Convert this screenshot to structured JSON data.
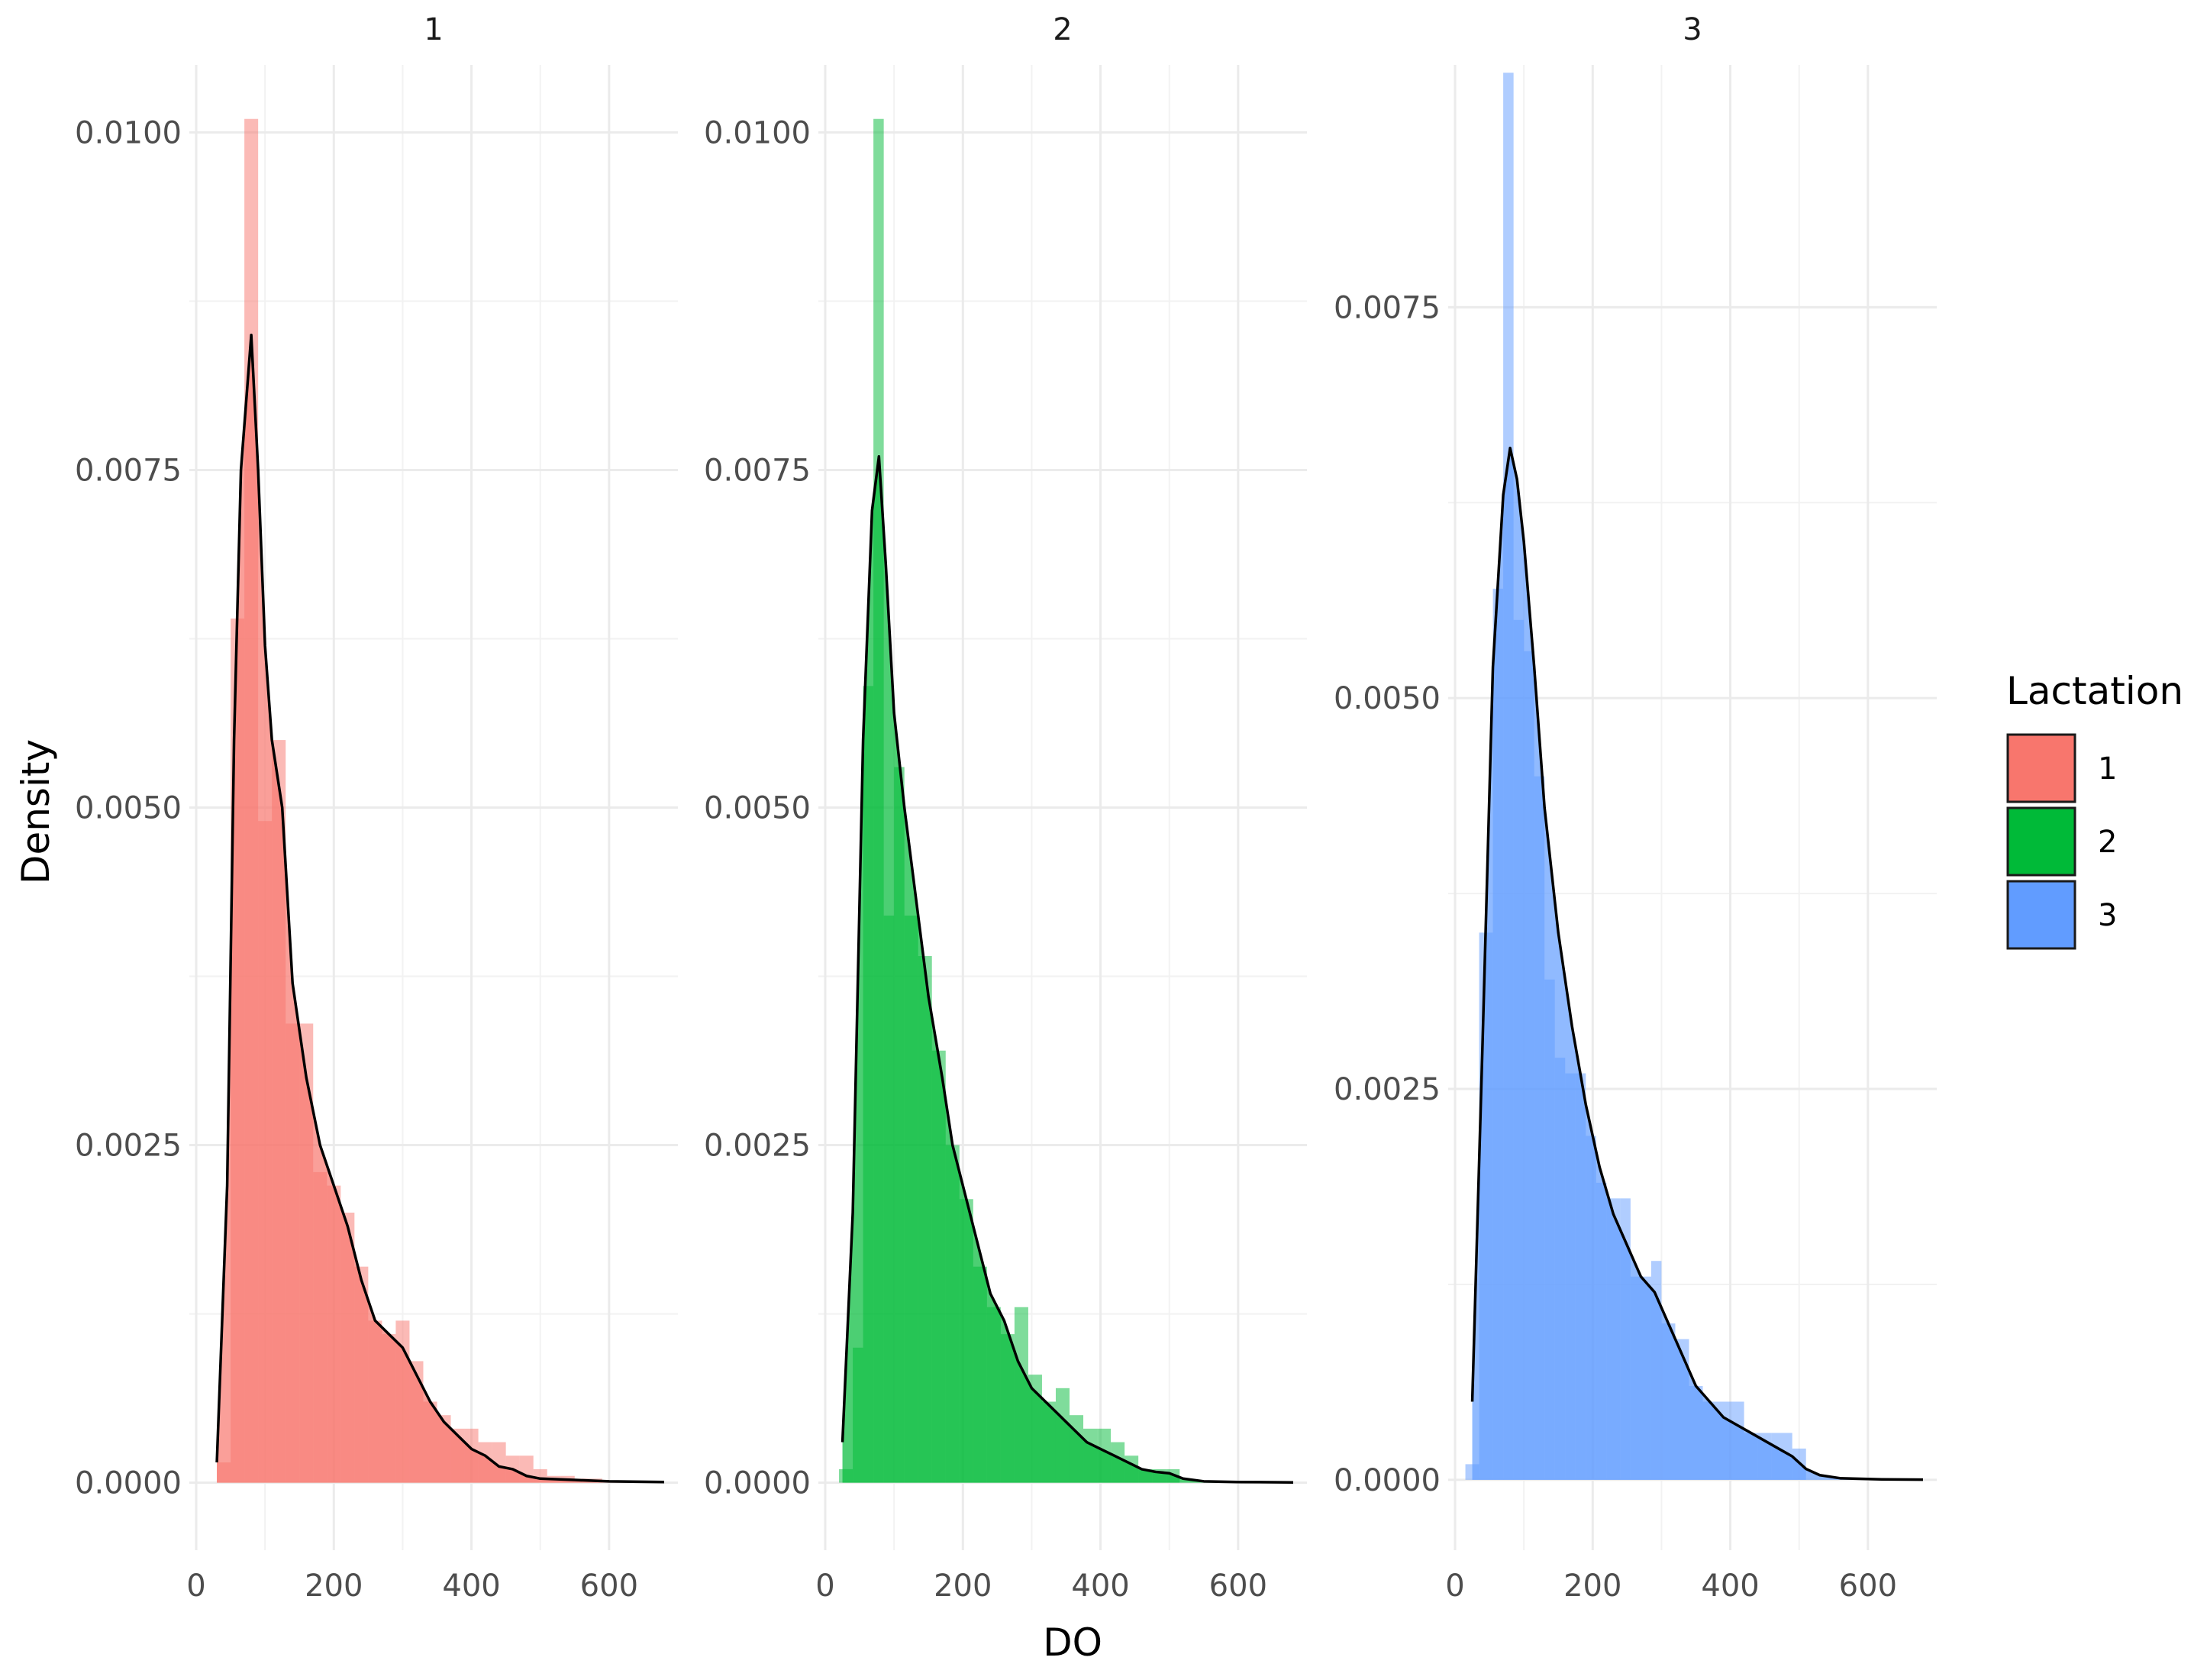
{
  "chart_data": {
    "type": "area",
    "description_kind": "faceted histogram with density overlay",
    "facets": [
      "1",
      "2",
      "3"
    ],
    "xlabel": "DO",
    "ylabel": "Density",
    "legend": {
      "title": "Lactation",
      "placement": "right",
      "entries": [
        {
          "label": "1",
          "color": "#F8766D"
        },
        {
          "label": "2",
          "color": "#00BA38"
        },
        {
          "label": "3",
          "color": "#619CFF"
        }
      ]
    },
    "x_ticks": [
      "0",
      "200",
      "400",
      "600"
    ],
    "xlim": [
      -10,
      700
    ],
    "grid": true,
    "panels": [
      {
        "facet": "1",
        "ylim": [
          -0.0005,
          0.0105
        ],
        "y_ticks": [
          "0.0000",
          "0.0025",
          "0.0050",
          "0.0075",
          "0.0100"
        ],
        "y_tick_values": [
          0,
          0.0025,
          0.005,
          0.0075,
          0.01
        ],
        "color": "#F8766D",
        "hist_bins": [
          {
            "x0": 30,
            "x1": 50,
            "density": 0.00015
          },
          {
            "x0": 50,
            "x1": 70,
            "density": 0.0064
          },
          {
            "x0": 70,
            "x1": 90,
            "density": 0.0101
          },
          {
            "x0": 90,
            "x1": 110,
            "density": 0.0049
          },
          {
            "x0": 110,
            "x1": 130,
            "density": 0.0055
          },
          {
            "x0": 130,
            "x1": 150,
            "density": 0.0034
          },
          {
            "x0": 150,
            "x1": 170,
            "density": 0.0034
          },
          {
            "x0": 170,
            "x1": 190,
            "density": 0.0023
          },
          {
            "x0": 190,
            "x1": 210,
            "density": 0.0022
          },
          {
            "x0": 210,
            "x1": 230,
            "density": 0.002
          },
          {
            "x0": 230,
            "x1": 250,
            "density": 0.0016
          },
          {
            "x0": 250,
            "x1": 270,
            "density": 0.0012
          },
          {
            "x0": 270,
            "x1": 290,
            "density": 0.0011
          },
          {
            "x0": 290,
            "x1": 310,
            "density": 0.0012
          },
          {
            "x0": 310,
            "x1": 330,
            "density": 0.0009
          },
          {
            "x0": 330,
            "x1": 350,
            "density": 0.0006
          },
          {
            "x0": 350,
            "x1": 370,
            "density": 0.0005
          },
          {
            "x0": 370,
            "x1": 390,
            "density": 0.0004
          },
          {
            "x0": 390,
            "x1": 410,
            "density": 0.0004
          },
          {
            "x0": 410,
            "x1": 430,
            "density": 0.0003
          },
          {
            "x0": 430,
            "x1": 450,
            "density": 0.0003
          },
          {
            "x0": 450,
            "x1": 470,
            "density": 0.0002
          },
          {
            "x0": 470,
            "x1": 490,
            "density": 0.0002
          },
          {
            "x0": 490,
            "x1": 510,
            "density": 0.0001
          },
          {
            "x0": 510,
            "x1": 530,
            "density": 5e-05
          },
          {
            "x0": 530,
            "x1": 550,
            "density": 5e-05
          },
          {
            "x0": 550,
            "x1": 570,
            "density": 3e-05
          },
          {
            "x0": 570,
            "x1": 590,
            "density": 3e-05
          }
        ],
        "density_curve": [
          [
            30,
            0.00015
          ],
          [
            45,
            0.0022
          ],
          [
            55,
            0.0055
          ],
          [
            65,
            0.0075
          ],
          [
            80,
            0.0085
          ],
          [
            90,
            0.0075
          ],
          [
            100,
            0.0062
          ],
          [
            110,
            0.0055
          ],
          [
            125,
            0.005
          ],
          [
            140,
            0.0037
          ],
          [
            160,
            0.003
          ],
          [
            180,
            0.0025
          ],
          [
            200,
            0.0022
          ],
          [
            220,
            0.0019
          ],
          [
            240,
            0.0015
          ],
          [
            260,
            0.0012
          ],
          [
            280,
            0.0011
          ],
          [
            300,
            0.001
          ],
          [
            320,
            0.0008
          ],
          [
            340,
            0.0006
          ],
          [
            360,
            0.00045
          ],
          [
            380,
            0.00035
          ],
          [
            400,
            0.00025
          ],
          [
            420,
            0.0002
          ],
          [
            440,
            0.00012
          ],
          [
            460,
            0.0001
          ],
          [
            480,
            5e-05
          ],
          [
            500,
            3e-05
          ],
          [
            550,
            2e-05
          ],
          [
            600,
            1e-05
          ],
          [
            680,
            5e-06
          ]
        ]
      },
      {
        "facet": "2",
        "ylim": [
          -0.0005,
          0.0105
        ],
        "y_ticks": [
          "0.0000",
          "0.0025",
          "0.0050",
          "0.0075",
          "0.0100"
        ],
        "y_tick_values": [
          0,
          0.0025,
          0.005,
          0.0075,
          0.01
        ],
        "color": "#00BA38",
        "hist_bins": [
          {
            "x0": 20,
            "x1": 40,
            "density": 0.0001
          },
          {
            "x0": 40,
            "x1": 55,
            "density": 0.001
          },
          {
            "x0": 55,
            "x1": 70,
            "density": 0.0059
          },
          {
            "x0": 70,
            "x1": 85,
            "density": 0.0101
          },
          {
            "x0": 85,
            "x1": 100,
            "density": 0.0042
          },
          {
            "x0": 100,
            "x1": 115,
            "density": 0.0053
          },
          {
            "x0": 115,
            "x1": 135,
            "density": 0.0042
          },
          {
            "x0": 135,
            "x1": 155,
            "density": 0.0039
          },
          {
            "x0": 155,
            "x1": 175,
            "density": 0.0032
          },
          {
            "x0": 175,
            "x1": 195,
            "density": 0.0025
          },
          {
            "x0": 195,
            "x1": 215,
            "density": 0.0021
          },
          {
            "x0": 215,
            "x1": 235,
            "density": 0.0016
          },
          {
            "x0": 235,
            "x1": 255,
            "density": 0.0013
          },
          {
            "x0": 255,
            "x1": 275,
            "density": 0.0011
          },
          {
            "x0": 275,
            "x1": 295,
            "density": 0.0013
          },
          {
            "x0": 295,
            "x1": 315,
            "density": 0.0008
          },
          {
            "x0": 315,
            "x1": 335,
            "density": 0.0006
          },
          {
            "x0": 335,
            "x1": 355,
            "density": 0.0007
          },
          {
            "x0": 355,
            "x1": 375,
            "density": 0.0005
          },
          {
            "x0": 375,
            "x1": 395,
            "density": 0.0004
          },
          {
            "x0": 395,
            "x1": 415,
            "density": 0.0004
          },
          {
            "x0": 415,
            "x1": 435,
            "density": 0.0003
          },
          {
            "x0": 435,
            "x1": 455,
            "density": 0.0002
          },
          {
            "x0": 455,
            "x1": 475,
            "density": 0.0001
          },
          {
            "x0": 475,
            "x1": 495,
            "density": 0.0001
          },
          {
            "x0": 495,
            "x1": 515,
            "density": 0.0001
          }
        ],
        "density_curve": [
          [
            25,
            0.0003
          ],
          [
            40,
            0.002
          ],
          [
            55,
            0.0055
          ],
          [
            68,
            0.0072
          ],
          [
            78,
            0.0076
          ],
          [
            88,
            0.0068
          ],
          [
            100,
            0.0057
          ],
          [
            115,
            0.005
          ],
          [
            130,
            0.0044
          ],
          [
            150,
            0.0036
          ],
          [
            170,
            0.003
          ],
          [
            185,
            0.0025
          ],
          [
            200,
            0.0022
          ],
          [
            220,
            0.0018
          ],
          [
            240,
            0.0014
          ],
          [
            260,
            0.0012
          ],
          [
            280,
            0.0009
          ],
          [
            300,
            0.0007
          ],
          [
            320,
            0.0006
          ],
          [
            340,
            0.0005
          ],
          [
            360,
            0.0004
          ],
          [
            380,
            0.0003
          ],
          [
            400,
            0.00025
          ],
          [
            420,
            0.0002
          ],
          [
            440,
            0.00015
          ],
          [
            460,
            0.0001
          ],
          [
            480,
            8e-05
          ],
          [
            500,
            7e-05
          ],
          [
            520,
            3e-05
          ],
          [
            550,
            1e-05
          ],
          [
            600,
            5e-06
          ],
          [
            680,
            2e-06
          ]
        ]
      },
      {
        "facet": "3",
        "ylim": [
          -0.00045,
          0.00905
        ],
        "y_ticks": [
          "0.0000",
          "0.0025",
          "0.0050",
          "0.0075"
        ],
        "y_tick_values": [
          0,
          0.0025,
          0.005,
          0.0075
        ],
        "color": "#619CFF",
        "hist_bins": [
          {
            "x0": 15,
            "x1": 35,
            "density": 0.0001
          },
          {
            "x0": 35,
            "x1": 55,
            "density": 0.0035
          },
          {
            "x0": 55,
            "x1": 70,
            "density": 0.0057
          },
          {
            "x0": 70,
            "x1": 85,
            "density": 0.009
          },
          {
            "x0": 85,
            "x1": 100,
            "density": 0.0055
          },
          {
            "x0": 100,
            "x1": 115,
            "density": 0.0053
          },
          {
            "x0": 115,
            "x1": 130,
            "density": 0.0045
          },
          {
            "x0": 130,
            "x1": 145,
            "density": 0.0032
          },
          {
            "x0": 145,
            "x1": 160,
            "density": 0.0027
          },
          {
            "x0": 160,
            "x1": 175,
            "density": 0.0026
          },
          {
            "x0": 175,
            "x1": 190,
            "density": 0.0026
          },
          {
            "x0": 190,
            "x1": 205,
            "density": 0.0022
          },
          {
            "x0": 205,
            "x1": 220,
            "density": 0.0019
          },
          {
            "x0": 220,
            "x1": 240,
            "density": 0.0018
          },
          {
            "x0": 240,
            "x1": 255,
            "density": 0.0018
          },
          {
            "x0": 255,
            "x1": 270,
            "density": 0.0013
          },
          {
            "x0": 270,
            "x1": 285,
            "density": 0.0013
          },
          {
            "x0": 285,
            "x1": 300,
            "density": 0.0014
          },
          {
            "x0": 300,
            "x1": 320,
            "density": 0.001
          },
          {
            "x0": 320,
            "x1": 340,
            "density": 0.0009
          },
          {
            "x0": 340,
            "x1": 360,
            "density": 0.0006
          },
          {
            "x0": 360,
            "x1": 380,
            "density": 0.0005
          },
          {
            "x0": 380,
            "x1": 400,
            "density": 0.0005
          },
          {
            "x0": 400,
            "x1": 420,
            "density": 0.0005
          },
          {
            "x0": 420,
            "x1": 440,
            "density": 0.0003
          },
          {
            "x0": 440,
            "x1": 460,
            "density": 0.0003
          },
          {
            "x0": 460,
            "x1": 490,
            "density": 0.0003
          },
          {
            "x0": 490,
            "x1": 510,
            "density": 0.0002
          }
        ],
        "density_curve": [
          [
            25,
            0.0005
          ],
          [
            40,
            0.0028
          ],
          [
            55,
            0.0052
          ],
          [
            70,
            0.0063
          ],
          [
            80,
            0.0066
          ],
          [
            90,
            0.0064
          ],
          [
            100,
            0.006
          ],
          [
            115,
            0.0052
          ],
          [
            130,
            0.0043
          ],
          [
            150,
            0.0035
          ],
          [
            170,
            0.0029
          ],
          [
            190,
            0.0024
          ],
          [
            210,
            0.002
          ],
          [
            230,
            0.0017
          ],
          [
            250,
            0.0015
          ],
          [
            270,
            0.0013
          ],
          [
            290,
            0.0012
          ],
          [
            310,
            0.001
          ],
          [
            330,
            0.0008
          ],
          [
            350,
            0.0006
          ],
          [
            370,
            0.0005
          ],
          [
            390,
            0.0004
          ],
          [
            410,
            0.00035
          ],
          [
            430,
            0.0003
          ],
          [
            450,
            0.00025
          ],
          [
            470,
            0.0002
          ],
          [
            490,
            0.00015
          ],
          [
            510,
            7e-05
          ],
          [
            530,
            3e-05
          ],
          [
            560,
            1e-05
          ],
          [
            620,
            3e-06
          ],
          [
            680,
            1e-06
          ]
        ]
      }
    ]
  }
}
